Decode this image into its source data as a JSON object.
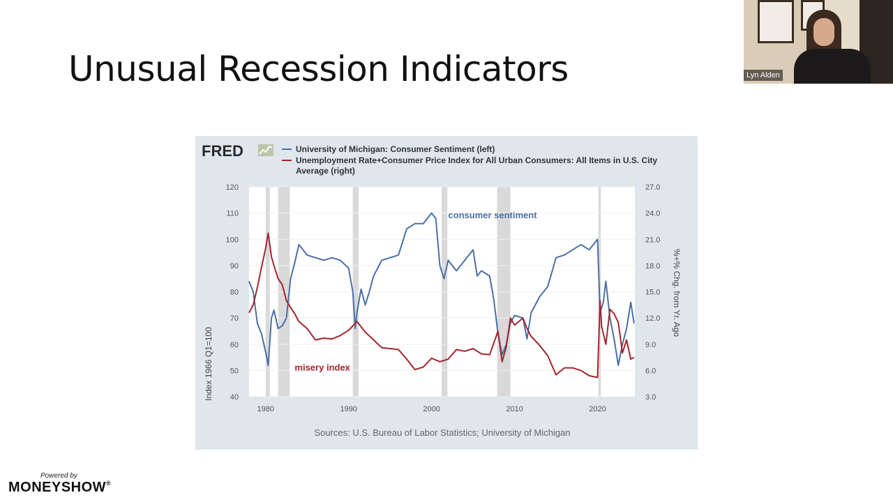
{
  "slide": {
    "title": "Unusual Recession Indicators"
  },
  "webcam": {
    "name": "Lyn Alden"
  },
  "footer": {
    "powered_by": "Powered by",
    "brand": "MONEYSHOW"
  },
  "brand_mark": {
    "registered": "®"
  },
  "colors": {
    "left_series": "#4a6fa5",
    "right_series": "#a3242e",
    "recession_band": "#d9d9d9",
    "plot_bg": "#ffffff",
    "card_bg": "#dfe6ec"
  },
  "chart_data": {
    "type": "line",
    "source_logo": "FRED",
    "legend": [
      {
        "name": "University of Michigan: Consumer Sentiment (left)",
        "color": "#4a6fa5"
      },
      {
        "name": "Unemployment Rate+Consumer Price Index for All Urban Consumers: All Items in U.S. City Average (right)",
        "line1": "Unemployment Rate+Consumer Price Index for All Urban Consumers: All Items in U.S. City",
        "line2": "Average (right)",
        "color": "#a3242e"
      }
    ],
    "ylabel_left": "Index 1966 Q1=100",
    "ylabel_right": "%+% Chg. from Yr. Ago",
    "ylim_left": [
      40,
      120
    ],
    "ylim_right": [
      3.0,
      27.0
    ],
    "yticks_left": [
      "40",
      "50",
      "60",
      "70",
      "80",
      "90",
      "100",
      "110",
      "120"
    ],
    "yticks_right": [
      "3.0",
      "6.0",
      "9.0",
      "12.0",
      "15.0",
      "18.0",
      "21.0",
      "24.0",
      "27.0"
    ],
    "xlim": [
      1978,
      2024.5
    ],
    "xticks": [
      1980,
      1990,
      2000,
      2010,
      2020
    ],
    "recessions": [
      [
        1980.0,
        1980.5
      ],
      [
        1981.5,
        1982.9
      ],
      [
        1990.5,
        1991.2
      ],
      [
        2001.2,
        2001.9
      ],
      [
        2007.9,
        2009.5
      ],
      [
        2020.1,
        2020.4
      ]
    ],
    "annotations": [
      {
        "text": "consumer sentiment",
        "x": 2002,
        "y": 108,
        "axis": "left"
      },
      {
        "text": "misery index",
        "x": 1983.5,
        "y": 50,
        "axis": "left"
      }
    ],
    "source": "Sources: U.S. Bureau of Labor Statistics; University of Michigan",
    "series": [
      {
        "name": "consumer sentiment",
        "axis": "left",
        "x": [
          1978,
          1978.5,
          1979,
          1979.5,
          1980,
          1980.3,
          1980.7,
          1981,
          1981.5,
          1982,
          1982.5,
          1983,
          1983.5,
          1984,
          1985,
          1986,
          1987,
          1988,
          1989,
          1990,
          1990.5,
          1990.8,
          1991,
          1991.5,
          1992,
          1992.5,
          1993,
          1994,
          1995,
          1996,
          1997,
          1998,
          1999,
          2000,
          2000.5,
          2001,
          2001.5,
          2002,
          2003,
          2004,
          2005,
          2005.5,
          2006,
          2007,
          2007.5,
          2008,
          2008.5,
          2009,
          2009.5,
          2010,
          2011,
          2011.5,
          2012,
          2013,
          2014,
          2015,
          2016,
          2017,
          2018,
          2019,
          2020,
          2020.3,
          2020.7,
          2021,
          2021.5,
          2022,
          2022.5,
          2023,
          2023.5,
          2024,
          2024.4
        ],
        "values": [
          84,
          80,
          68,
          64,
          57,
          52,
          70,
          73,
          66,
          67,
          70,
          85,
          91,
          98,
          94,
          93,
          92,
          93,
          92,
          89,
          80,
          66,
          72,
          81,
          75,
          80,
          86,
          92,
          93,
          94,
          104,
          106,
          106,
          110,
          108,
          90,
          85,
          92,
          88,
          92,
          96,
          86,
          88,
          86,
          77,
          64,
          56,
          60,
          68,
          71,
          70,
          62,
          72,
          78,
          82,
          93,
          94,
          96,
          98,
          96,
          100,
          72,
          76,
          84,
          70,
          62,
          52,
          60,
          66,
          76,
          68
        ]
      },
      {
        "name": "misery index",
        "axis": "right",
        "x": [
          1978,
          1978.5,
          1979,
          1979.5,
          1980,
          1980.3,
          1980.7,
          1981,
          1981.5,
          1982,
          1982.5,
          1983,
          1983.5,
          1984,
          1985,
          1986,
          1987,
          1988,
          1989,
          1990,
          1990.5,
          1991,
          1992,
          1993,
          1994,
          1995,
          1996,
          1997,
          1998,
          1999,
          2000,
          2001,
          2002,
          2003,
          2004,
          2005,
          2006,
          2007,
          2008,
          2008.5,
          2009,
          2009.5,
          2010,
          2011,
          2011.5,
          2012,
          2013,
          2014,
          2015,
          2016,
          2017,
          2018,
          2019,
          2020,
          2020.3,
          2020.5,
          2021,
          2021.5,
          2022,
          2022.5,
          2023,
          2023.5,
          2024,
          2024.4
        ],
        "values": [
          12.6,
          13.5,
          15.5,
          17.8,
          20.0,
          21.7,
          19.0,
          18.0,
          16.5,
          15.8,
          14.0,
          13.2,
          12.5,
          11.6,
          10.8,
          9.5,
          9.7,
          9.6,
          10.0,
          10.6,
          11.1,
          11.6,
          10.4,
          9.5,
          8.6,
          8.5,
          8.4,
          7.3,
          6.1,
          6.4,
          7.4,
          7.0,
          7.3,
          8.4,
          8.2,
          8.5,
          7.9,
          7.8,
          10.5,
          7.0,
          8.7,
          12.0,
          11.2,
          12.0,
          10.8,
          9.9,
          8.9,
          7.7,
          5.5,
          6.3,
          6.3,
          6.0,
          5.4,
          5.2,
          14.0,
          11.0,
          9.0,
          13.0,
          12.5,
          11.5,
          8.0,
          9.5,
          7.3,
          7.5
        ]
      }
    ]
  }
}
